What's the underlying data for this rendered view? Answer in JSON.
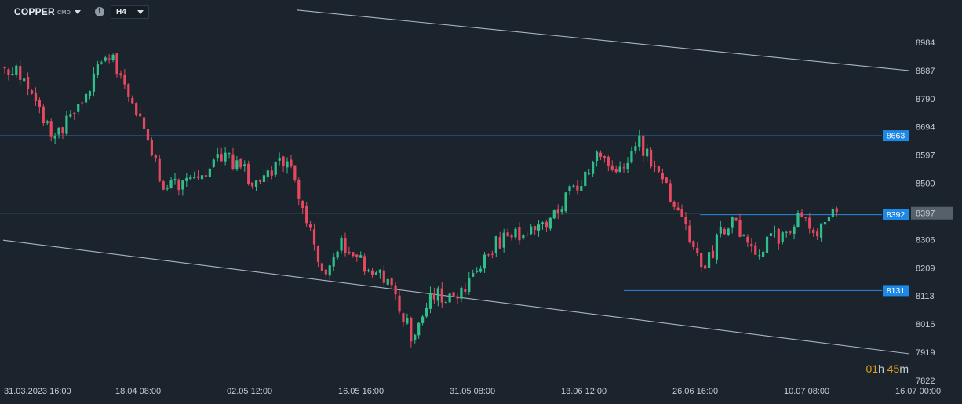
{
  "header": {
    "symbol": "COPPER",
    "symbol_suffix": "CMD",
    "timeframe": "H4"
  },
  "countdown": {
    "hours": "01",
    "hours_unit": "h",
    "minutes": "45",
    "minutes_unit": "m"
  },
  "colors": {
    "background": "#1b242d",
    "up_candle": "#2fbf8a",
    "down_candle": "#e5485f",
    "horizontal_line": "#2d86df",
    "trend_line": "#aab4c5",
    "price_tag_bg": "#1e88e5",
    "current_price_bg": "#55606b"
  },
  "chart_data": {
    "type": "candlestick",
    "instrument": "COPPER",
    "timeframe": "H4",
    "y_ticks": [
      8984,
      8887,
      8790,
      8694,
      8597,
      8500,
      8397,
      8306,
      8209,
      8113,
      8016,
      7919,
      7822
    ],
    "ylim": [
      7822,
      9005
    ],
    "x_ticks": [
      "31.03.2023  16:00",
      "18.04  08:00",
      "02.05  12:00",
      "16.05  16:00",
      "31.05  08:00",
      "13.06  12:00",
      "26.06  16:00",
      "10.07  08:00",
      "16.07  00:00"
    ],
    "n_candles": 235,
    "current_price": 8397,
    "price_levels": [
      8663,
      8392,
      8131
    ],
    "trend_lines": [
      {
        "from": [
          76,
          9095
        ],
        "to": [
          234,
          8887
        ]
      },
      {
        "from": [
          0,
          8304
        ],
        "to": [
          234,
          7914
        ]
      }
    ],
    "segments": [
      {
        "start": 0,
        "end": 5,
        "o": 8900,
        "c": 8880
      },
      {
        "start": 5,
        "end": 14,
        "o": 8880,
        "c": 8650
      },
      {
        "start": 14,
        "end": 28,
        "o": 8650,
        "c": 8950
      },
      {
        "start": 28,
        "end": 34,
        "o": 8950,
        "c": 8780
      },
      {
        "start": 34,
        "end": 42,
        "o": 8780,
        "c": 8500
      },
      {
        "start": 42,
        "end": 48,
        "o": 8500,
        "c": 8490
      },
      {
        "start": 48,
        "end": 58,
        "o": 8490,
        "c": 8600
      },
      {
        "start": 58,
        "end": 66,
        "o": 8600,
        "c": 8500
      },
      {
        "start": 66,
        "end": 74,
        "o": 8500,
        "c": 8600
      },
      {
        "start": 74,
        "end": 84,
        "o": 8600,
        "c": 8160
      },
      {
        "start": 84,
        "end": 88,
        "o": 8160,
        "c": 8290
      },
      {
        "start": 88,
        "end": 100,
        "o": 8290,
        "c": 8160
      },
      {
        "start": 100,
        "end": 106,
        "o": 8160,
        "c": 7980
      },
      {
        "start": 106,
        "end": 112,
        "o": 7980,
        "c": 8120
      },
      {
        "start": 112,
        "end": 118,
        "o": 8120,
        "c": 8090
      },
      {
        "start": 118,
        "end": 128,
        "o": 8090,
        "c": 8300
      },
      {
        "start": 128,
        "end": 140,
        "o": 8300,
        "c": 8350
      },
      {
        "start": 140,
        "end": 154,
        "o": 8350,
        "c": 8580
      },
      {
        "start": 154,
        "end": 160,
        "o": 8580,
        "c": 8560
      },
      {
        "start": 160,
        "end": 165,
        "o": 8560,
        "c": 8640
      },
      {
        "start": 165,
        "end": 176,
        "o": 8640,
        "c": 8380
      },
      {
        "start": 176,
        "end": 181,
        "o": 8380,
        "c": 8200
      },
      {
        "start": 181,
        "end": 188,
        "o": 8200,
        "c": 8370
      },
      {
        "start": 188,
        "end": 196,
        "o": 8370,
        "c": 8270
      },
      {
        "start": 196,
        "end": 206,
        "o": 8270,
        "c": 8370
      },
      {
        "start": 206,
        "end": 212,
        "o": 8370,
        "c": 8340
      },
      {
        "start": 212,
        "end": 216,
        "o": 8340,
        "c": 8400
      }
    ]
  }
}
